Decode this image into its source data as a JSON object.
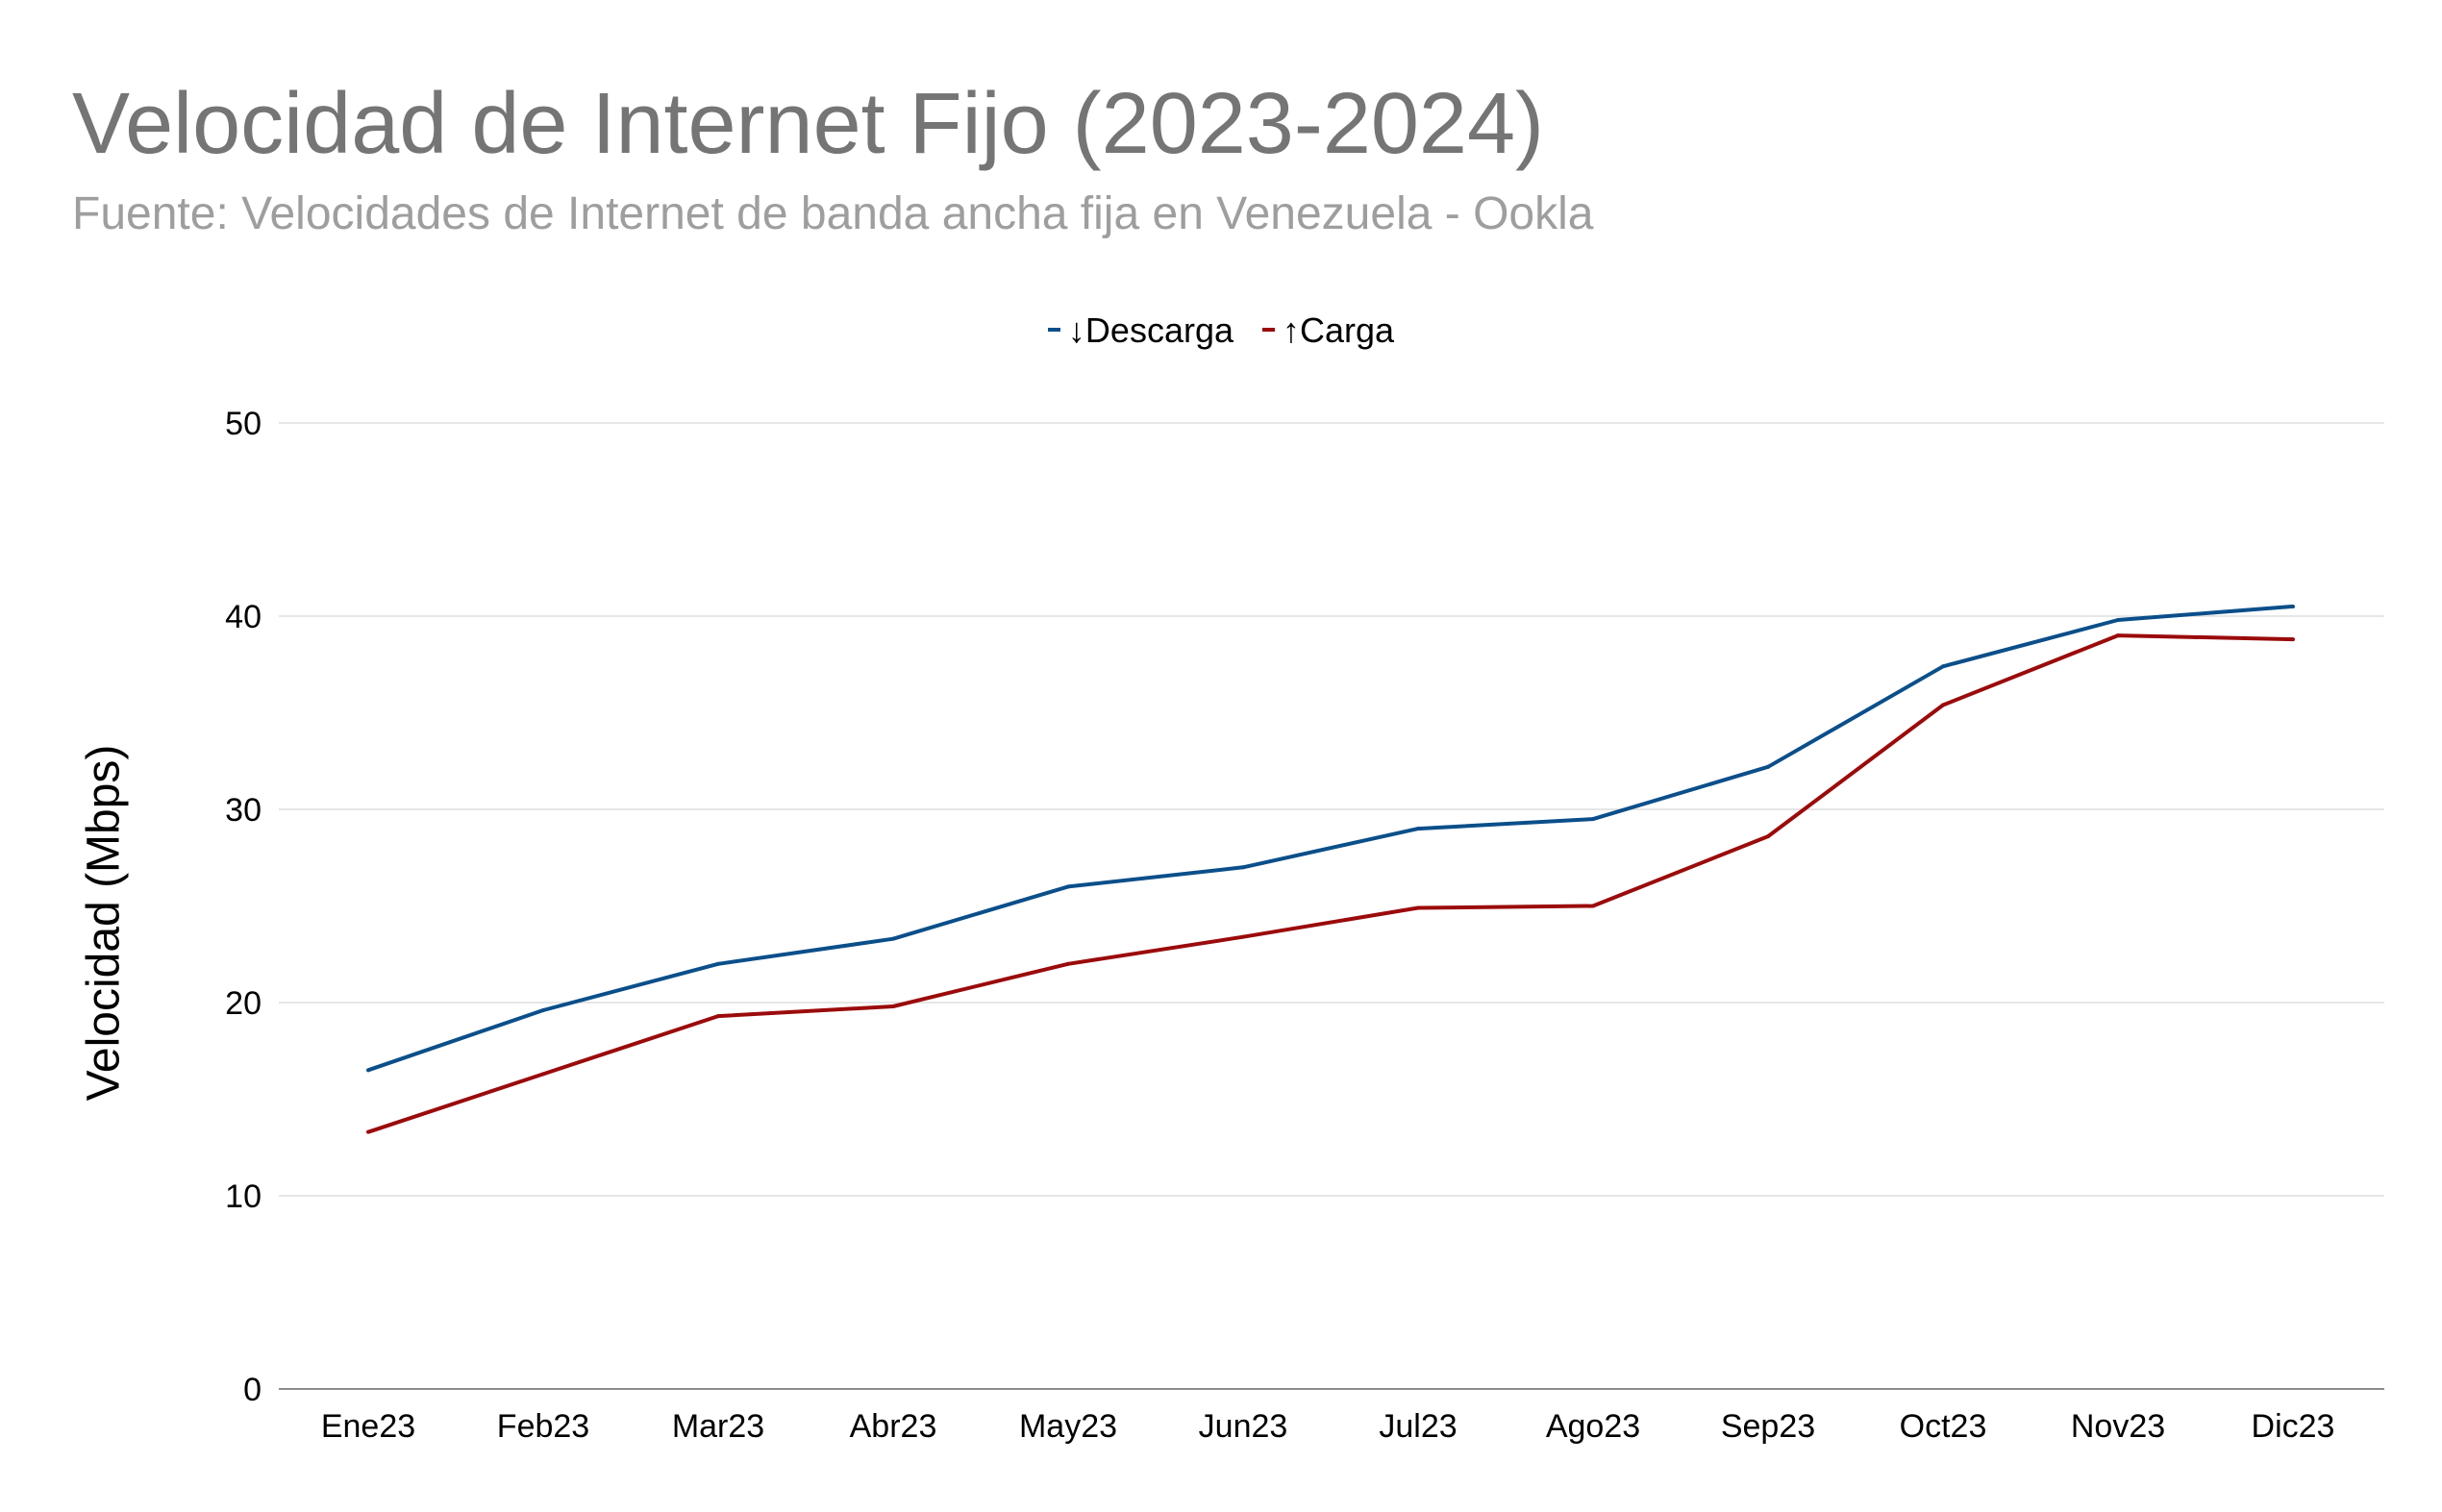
{
  "chart_data": {
    "type": "line",
    "title": "Velocidad de Internet Fijo (2023-2024)",
    "subtitle": "Fuente: Velocidades de Internet de banda ancha fija en Venezuela - Ookla",
    "xlabel": "",
    "ylabel": "Velocidad (Mbps)",
    "ylim": [
      0,
      50
    ],
    "yticks": [
      "0",
      "10",
      "20",
      "30",
      "40",
      "50"
    ],
    "grid": true,
    "legend_position": "top",
    "categories": [
      "Ene23",
      "Feb23",
      "Mar23",
      "Abr23",
      "May23",
      "Jun23",
      "Jul23",
      "Ago23",
      "Sep23",
      "Oct23",
      "Nov23",
      "Dic23"
    ],
    "series": [
      {
        "name": "↓Descarga",
        "color": "#0b4f8a",
        "values": [
          16.5,
          19.6,
          22.0,
          23.3,
          26.0,
          27.0,
          29.0,
          29.5,
          32.2,
          37.4,
          39.8,
          40.5
        ]
      },
      {
        "name": "↑Carga",
        "color": "#9b0b0b",
        "values": [
          13.3,
          16.3,
          19.3,
          19.8,
          22.0,
          23.4,
          24.9,
          25.0,
          28.6,
          35.4,
          39.0,
          38.8
        ]
      }
    ]
  }
}
